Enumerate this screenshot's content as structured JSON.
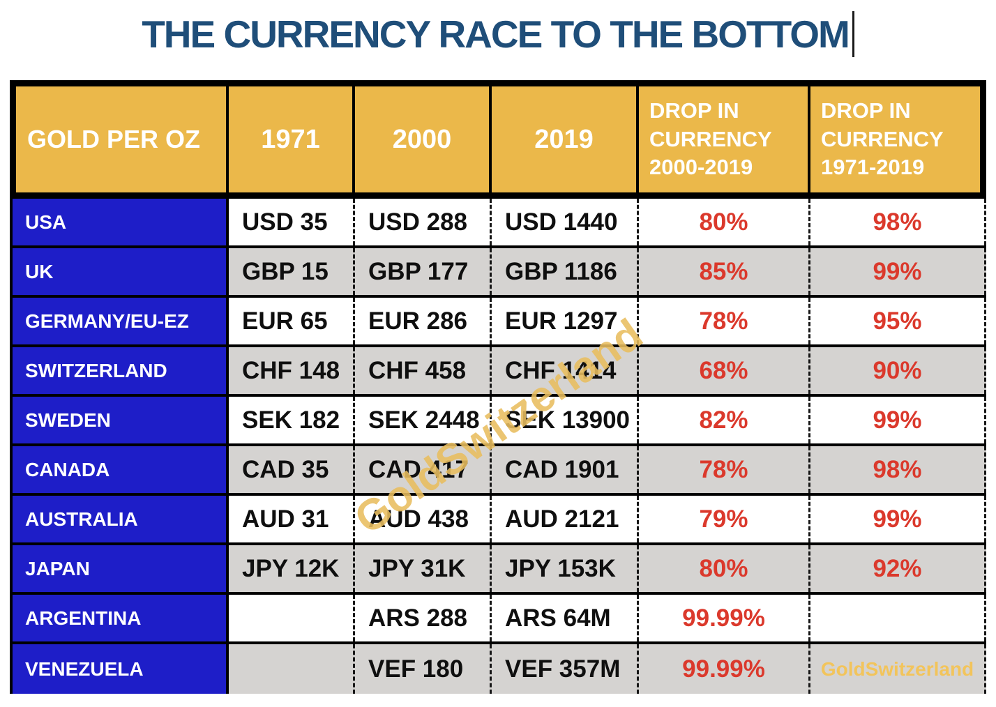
{
  "title": {
    "text": "THE CURRENCY RACE TO THE BOTTOM"
  },
  "colors": {
    "title_navy": "#1F4E79",
    "header_gold": "#EBB84A",
    "country_blue": "#1E1EC8",
    "row_shade_gray": "#D5D3D1",
    "percent_red": "#DB392C",
    "watermark_gold": "#E9BE5F",
    "brand_gold": "#F2C45B"
  },
  "watermark": {
    "diagonal": "GoldSwitzerland"
  },
  "table": {
    "header": {
      "col0": "GOLD PER OZ",
      "col1": "1971",
      "col2": "2000",
      "col3": "2019",
      "col4": "DROP IN\nCURRENCY\n2000-2019",
      "col5": "DROP IN\nCURRENCY\n1971-2019"
    },
    "rows": [
      {
        "country": "USA",
        "y1971": "USD 35",
        "y2000": "USD 288",
        "y2019": "USD 1440",
        "drop_2000_2019": "80%",
        "drop_1971_2019": "98%"
      },
      {
        "country": "UK",
        "y1971": "GBP 15",
        "y2000": "GBP 177",
        "y2019": "GBP 1186",
        "drop_2000_2019": "85%",
        "drop_1971_2019": "99%"
      },
      {
        "country": "GERMANY/EU-EZ",
        "y1971": "EUR 65",
        "y2000": "EUR 286",
        "y2019": "EUR 1297",
        "drop_2000_2019": "78%",
        "drop_1971_2019": "95%"
      },
      {
        "country": "SWITZERLAND",
        "y1971": "CHF 148",
        "y2000": "CHF 458",
        "y2019": "CHF 1414",
        "drop_2000_2019": "68%",
        "drop_1971_2019": "90%"
      },
      {
        "country": "SWEDEN",
        "y1971": "SEK 182",
        "y2000": "SEK 2448",
        "y2019": "SEK 13900",
        "drop_2000_2019": "82%",
        "drop_1971_2019": "99%"
      },
      {
        "country": "CANADA",
        "y1971": "CAD 35",
        "y2000": "CAD 417",
        "y2019": "CAD 1901",
        "drop_2000_2019": "78%",
        "drop_1971_2019": "98%"
      },
      {
        "country": "AUSTRALIA",
        "y1971": "AUD 31",
        "y2000": "AUD 438",
        "y2019": "AUD 2121",
        "drop_2000_2019": "79%",
        "drop_1971_2019": "99%"
      },
      {
        "country": "JAPAN",
        "y1971": "JPY 12K",
        "y2000": "JPY 31K",
        "y2019": "JPY 153K",
        "drop_2000_2019": "80%",
        "drop_1971_2019": "92%"
      },
      {
        "country": "ARGENTINA",
        "y1971": "",
        "y2000": "ARS 288",
        "y2019": "ARS 64M",
        "drop_2000_2019": "99.99%",
        "drop_1971_2019": ""
      },
      {
        "country": "VENEZUELA",
        "y1971": "",
        "y2000": "VEF 180",
        "y2019": "VEF 357M",
        "drop_2000_2019": "99.99%",
        "drop_1971_2019": "",
        "brand": "GoldSwitzerland"
      }
    ]
  },
  "chart_data": {
    "type": "table",
    "title": "THE CURRENCY RACE TO THE BOTTOM",
    "columns": [
      "GOLD PER OZ",
      "1971",
      "2000",
      "2019",
      "DROP IN CURRENCY 2000-2019",
      "DROP IN CURRENCY 1971-2019"
    ],
    "rows": [
      [
        "USA",
        "USD 35",
        "USD 288",
        "USD 1440",
        "80%",
        "98%"
      ],
      [
        "UK",
        "GBP 15",
        "GBP 177",
        "GBP 1186",
        "85%",
        "99%"
      ],
      [
        "GERMANY/EU-EZ",
        "EUR 65",
        "EUR 286",
        "EUR 1297",
        "78%",
        "95%"
      ],
      [
        "SWITZERLAND",
        "CHF 148",
        "CHF 458",
        "CHF 1414",
        "68%",
        "90%"
      ],
      [
        "SWEDEN",
        "SEK 182",
        "SEK 2448",
        "SEK 13900",
        "82%",
        "99%"
      ],
      [
        "CANADA",
        "CAD 35",
        "CAD 417",
        "CAD 1901",
        "78%",
        "98%"
      ],
      [
        "AUSTRALIA",
        "AUD 31",
        "AUD 438",
        "AUD 2121",
        "79%",
        "99%"
      ],
      [
        "JAPAN",
        "JPY 12K",
        "JPY 31K",
        "JPY 153K",
        "80%",
        "92%"
      ],
      [
        "ARGENTINA",
        "",
        "ARS 288",
        "ARS 64M",
        "99.99%",
        ""
      ],
      [
        "VENEZUELA",
        "",
        "VEF 180",
        "VEF 357M",
        "99.99%",
        ""
      ]
    ]
  }
}
